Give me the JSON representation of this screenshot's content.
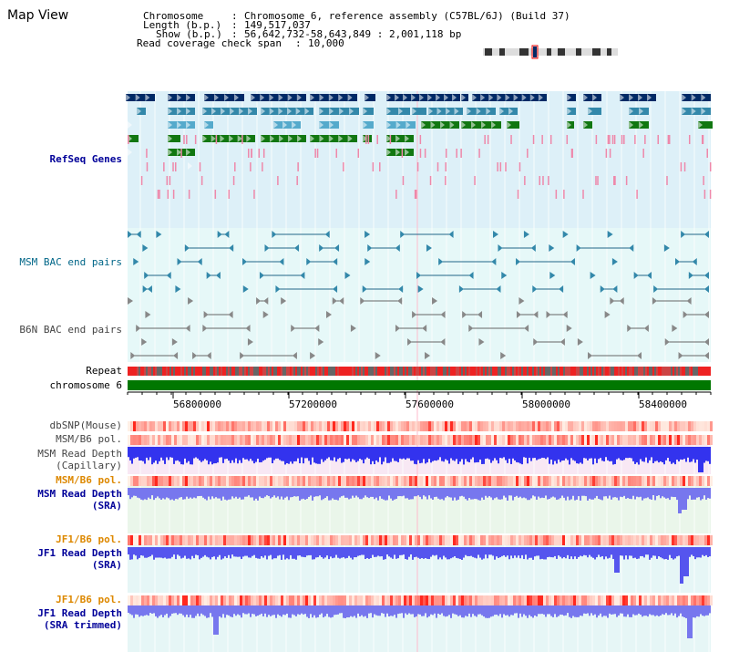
{
  "view_title": "Map View",
  "header": {
    "chromosome_key": "Chromosome",
    "chromosome_value": "Chromosome 6, reference assembly (C57BL/6J) (Build 37)",
    "length_key": "Length (b.p.)",
    "length_value": "149,517,037",
    "show_key": "Show (b.p.)",
    "show_value": "56,642,732-58,643,849 : 2,001,118 bp",
    "coverage_key": "Read coverage check span",
    "coverage_value": "10,000"
  },
  "ideogram": {
    "highlight_color": "#ee0000"
  },
  "tracks": {
    "refseq": "RefSeq Genes",
    "msm_bac": "MSM BAC end pairs",
    "b6n_bac": "B6N BAC end pairs",
    "repeat": "Repeat",
    "chromosome": "chromosome 6",
    "dbsnp": "dbSNP(Mouse)",
    "msm_b6_pol_1": "MSM/B6 pol.",
    "msm_depth_cap_1": "MSM Read Depth",
    "msm_depth_cap_2": "(Capillary)",
    "msm_b6_pol_2": "MSM/B6 pol.",
    "msm_depth_sra_1": "MSM Read Depth",
    "msm_depth_sra_2": "(SRA)",
    "jf1_b6_pol_1": "JF1/B6 pol.",
    "jf1_depth_sra_1": "JF1 Read Depth",
    "jf1_depth_sra_2": "(SRA)",
    "jf1_b6_pol_2": "JF1/B6 pol.",
    "jf1_depth_trim_1": "JF1 Read Depth",
    "jf1_depth_trim_2": "(SRA trimmed)"
  },
  "axis": {
    "ticks": [
      "56800000",
      "57200000",
      "57600000",
      "58000000",
      "58400000"
    ]
  },
  "colors": {
    "refseq_label": "#000099",
    "msm_bac_label": "#006688",
    "b6n_bac_label": "#444444",
    "pol_label": "#dd8800",
    "depth_label": "#000099",
    "chromosome_bar": "#007700",
    "gene_dark": "#002a66",
    "gene_mid": "#3388aa",
    "gene_light": "#55aacc",
    "gene_green": "#117711",
    "snp_pink": "#ee88aa",
    "depth_blue": "#3333ee"
  }
}
